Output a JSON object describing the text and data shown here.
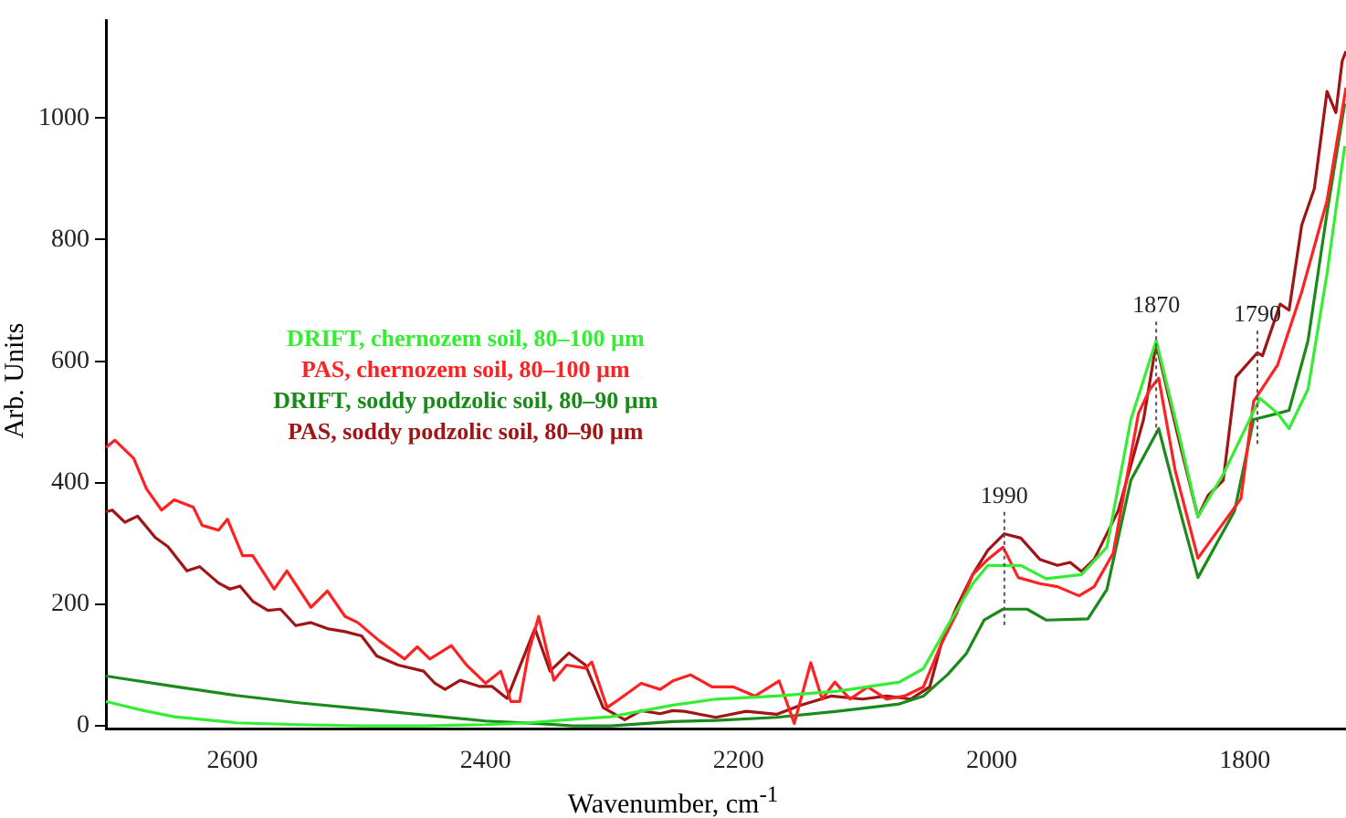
{
  "chart_data": {
    "type": "line",
    "xlabel": "Wavenumber, cm$^{-1}$",
    "ylabel": "Arb. Units",
    "xlim": [
      2700,
      1720
    ],
    "xticks": [
      2600,
      2400,
      2200,
      2000,
      1800
    ],
    "ylim": [
      -5,
      1160
    ],
    "yticks": [
      0,
      200,
      400,
      600,
      800,
      1000
    ],
    "grid": false,
    "legend": "center",
    "marker": "none",
    "line_style": "solid",
    "annotations": [
      {
        "text": "1990",
        "x": 1990,
        "y": 316
      },
      {
        "text": "1870",
        "x": 1870,
        "y": 629
      },
      {
        "text": "1790",
        "x": 1790,
        "y": 614
      }
    ],
    "series": [
      {
        "name": "DRIFT, chernozem soil, 80–100 µm",
        "color": "#33ee33",
        "x": [
          2700,
          2670,
          2646,
          2597,
          2548,
          2498,
          2449,
          2400,
          2366,
          2336,
          2301,
          2252,
          2218,
          2170,
          2122,
          2073,
          2054,
          2035,
          2015,
          2003,
          1977,
          1957,
          1929,
          1909,
          1890,
          1870,
          1852,
          1837,
          1817,
          1788,
          1774,
          1765,
          1750,
          1735,
          1721
        ],
        "values": [
          40,
          25,
          15,
          5,
          2,
          0,
          0,
          2,
          5,
          10,
          15,
          34,
          44,
          49,
          57,
          72,
          94,
          164,
          234,
          264,
          264,
          242,
          249,
          294,
          504,
          634,
          480,
          344,
          414,
          539,
          514,
          489,
          554,
          744,
          954
        ]
      },
      {
        "name": "PAS, chernozem soil, 80–100 µm",
        "color": "#ff2222",
        "x": [
          2700,
          2693,
          2678,
          2668,
          2656,
          2646,
          2631,
          2624,
          2611,
          2604,
          2592,
          2584,
          2567,
          2557,
          2538,
          2525,
          2511,
          2501,
          2484,
          2464,
          2454,
          2444,
          2427,
          2415,
          2400,
          2388,
          2380,
          2373,
          2366,
          2358,
          2346,
          2336,
          2321,
          2316,
          2304,
          2297,
          2287,
          2277,
          2262,
          2252,
          2238,
          2221,
          2204,
          2187,
          2168,
          2156,
          2143,
          2134,
          2124,
          2112,
          2098,
          2083,
          2069,
          2054,
          2040,
          2028,
          2015,
          2003,
          1991,
          1979,
          1962,
          1948,
          1931,
          1919,
          1904,
          1884,
          1875,
          1868,
          1855,
          1837,
          1803,
          1793,
          1774,
          1755,
          1735,
          1720
        ],
        "values": [
          458,
          470,
          440,
          390,
          355,
          372,
          360,
          330,
          322,
          340,
          280,
          280,
          225,
          255,
          195,
          222,
          180,
          170,
          140,
          110,
          130,
          110,
          132,
          100,
          70,
          90,
          40,
          40,
          120,
          180,
          75,
          100,
          95,
          105,
          30,
          40,
          55,
          70,
          60,
          74,
          84,
          64,
          64,
          49,
          74,
          4,
          104,
          44,
          72,
          44,
          64,
          44,
          49,
          64,
          134,
          184,
          249,
          274,
          294,
          244,
          234,
          229,
          214,
          229,
          284,
          514,
          554,
          572,
          420,
          276,
          374,
          534,
          594,
          714,
          864,
          1050
        ]
      },
      {
        "name": "DRIFT, soddy podzolic soil, 80–90 µm",
        "color": "#1a8a1a",
        "x": [
          2700,
          2646,
          2597,
          2548,
          2498,
          2449,
          2400,
          2351,
          2331,
          2301,
          2252,
          2218,
          2170,
          2122,
          2073,
          2054,
          2035,
          2020,
          2006,
          1991,
          1972,
          1957,
          1924,
          1909,
          1890,
          1868,
          1852,
          1837,
          1808,
          1793,
          1774,
          1765,
          1750,
          1735,
          1721
        ],
        "values": [
          82,
          65,
          50,
          38,
          28,
          18,
          8,
          3,
          0,
          0,
          7,
          9,
          14,
          24,
          36,
          49,
          84,
          119,
          174,
          192,
          192,
          174,
          176,
          224,
          404,
          489,
          360,
          244,
          354,
          504,
          514,
          519,
          634,
          844,
          1024
        ]
      },
      {
        "name": "PAS, soddy podzolic soil, 80–90 µm",
        "color": "#a01515",
        "x": [
          2700,
          2695,
          2685,
          2675,
          2661,
          2651,
          2636,
          2626,
          2611,
          2602,
          2594,
          2584,
          2572,
          2562,
          2550,
          2538,
          2525,
          2511,
          2498,
          2486,
          2469,
          2449,
          2440,
          2432,
          2420,
          2405,
          2395,
          2383,
          2361,
          2349,
          2334,
          2321,
          2307,
          2290,
          2277,
          2262,
          2252,
          2243,
          2218,
          2194,
          2170,
          2151,
          2127,
          2102,
          2083,
          2064,
          2049,
          2040,
          2028,
          2015,
          2003,
          1990,
          1977,
          1962,
          1948,
          1938,
          1929,
          1919,
          1900,
          1880,
          1870,
          1852,
          1837,
          1829,
          1817,
          1807,
          1790,
          1786,
          1772,
          1765,
          1755,
          1745,
          1735,
          1728,
          1723,
          1720
        ],
        "values": [
          352,
          355,
          335,
          345,
          310,
          295,
          255,
          262,
          235,
          225,
          230,
          205,
          190,
          192,
          165,
          170,
          160,
          155,
          148,
          115,
          100,
          90,
          70,
          60,
          75,
          65,
          65,
          45,
          160,
          90,
          120,
          100,
          30,
          10,
          25,
          20,
          25,
          24,
          14,
          24,
          19,
          34,
          49,
          44,
          49,
          44,
          64,
          134,
          194,
          249,
          289,
          316,
          309,
          274,
          264,
          269,
          254,
          274,
          354,
          504,
          629,
          470,
          344,
          379,
          404,
          574,
          614,
          609,
          694,
          684,
          824,
          884,
          1044,
          1009,
          1094,
          1110
        ]
      }
    ]
  }
}
